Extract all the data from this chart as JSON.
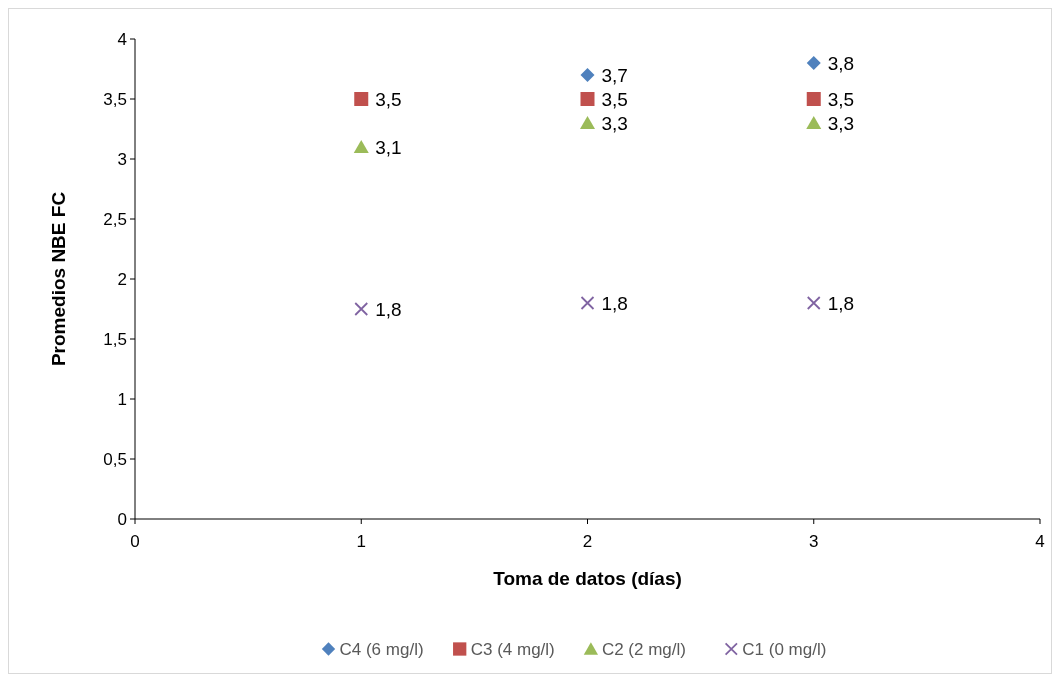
{
  "chart_data": {
    "type": "scatter",
    "xlabel": "Toma de datos (días)",
    "ylabel": "Promedios  NBE FC",
    "x": [
      1,
      2,
      3
    ],
    "xlim": [
      0,
      4
    ],
    "xticks": [
      0,
      1,
      2,
      3,
      4
    ],
    "ylim": [
      0,
      4
    ],
    "yticks": [
      0,
      {
        "value": 0.5,
        "label": "0,5"
      },
      1,
      {
        "value": 1.5,
        "label": "1,5"
      },
      2,
      {
        "value": 2.5,
        "label": "2,5"
      },
      3,
      {
        "value": 3.5,
        "label": "3,5"
      },
      4
    ],
    "grid": false,
    "legend": "bottom",
    "series": [
      {
        "name": "C4 (6 mg/l)",
        "color": "#4f81bd",
        "marker": "diamond",
        "values": [
          null,
          3.7,
          3.8
        ],
        "value_labels": [
          null,
          "3,7",
          "3,8"
        ]
      },
      {
        "name": "C3 (4 mg/l)",
        "color": "#c0504d",
        "marker": "square",
        "values": [
          3.5,
          3.5,
          3.5
        ],
        "value_labels": [
          "3,5",
          "3,5",
          "3,5"
        ]
      },
      {
        "name": "C2  (2 mg/l)",
        "color": "#9bbb59",
        "marker": "triangle",
        "values": [
          3.1,
          3.3,
          3.3
        ],
        "value_labels": [
          "3,1",
          "3,3",
          "3,3"
        ]
      },
      {
        "name": "C1 (0 mg/l)",
        "color": "#8064a2",
        "marker": "cross",
        "values": [
          1.75,
          1.8,
          1.8
        ],
        "value_labels": [
          "1,8",
          "1,8",
          "1,8"
        ]
      }
    ]
  }
}
